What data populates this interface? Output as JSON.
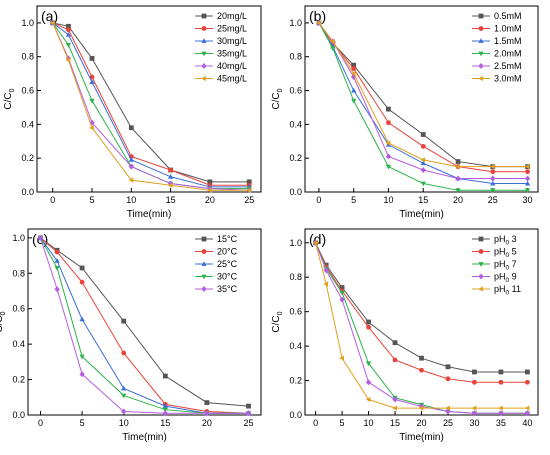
{
  "figure": {
    "marker_cycle": [
      "square",
      "circle",
      "triangle-up",
      "triangle-down",
      "diamond",
      "triangle-left"
    ]
  },
  "chart_data": [
    {
      "type": "line",
      "panel_label": "(a)",
      "xlabel": "Time(min)",
      "ylabel": "C/C",
      "ylabel_sub": "0",
      "xlim": [
        -2,
        26.5
      ],
      "ylim": [
        0,
        1.1
      ],
      "xticks": [
        0,
        5,
        10,
        15,
        20,
        25
      ],
      "yticks": [
        0.0,
        0.2,
        0.4,
        0.6,
        0.8,
        1.0
      ],
      "ytick_labels": [
        "0.0",
        "0.2",
        "0.4",
        "0.6",
        "0.8",
        "1.0"
      ],
      "legend_position": "top-right",
      "x": [
        0,
        2,
        5,
        10,
        15,
        20,
        25
      ],
      "series": [
        {
          "name": "20mg/L",
          "color": "#555555",
          "marker": "square",
          "values": [
            1.0,
            0.98,
            0.79,
            0.38,
            0.13,
            0.06,
            0.06
          ]
        },
        {
          "name": "25mg/L",
          "color": "#e8423c",
          "marker": "circle",
          "values": [
            1.0,
            0.96,
            0.68,
            0.21,
            0.13,
            0.04,
            0.04
          ]
        },
        {
          "name": "30mg/L",
          "color": "#3a6fd8",
          "marker": "triangle-up",
          "values": [
            1.0,
            0.93,
            0.65,
            0.19,
            0.09,
            0.03,
            0.03
          ]
        },
        {
          "name": "35mg/L",
          "color": "#2cb34a",
          "marker": "triangle-down",
          "values": [
            1.0,
            0.87,
            0.54,
            0.15,
            0.05,
            0.02,
            0.02
          ]
        },
        {
          "name": "40mg/L",
          "color": "#b45de0",
          "marker": "diamond",
          "values": [
            1.0,
            0.79,
            0.41,
            0.15,
            0.05,
            0.02,
            0.01
          ]
        },
        {
          "name": "45mg/L",
          "color": "#e0a020",
          "marker": "triangle-left",
          "values": [
            1.0,
            0.78,
            0.38,
            0.07,
            0.04,
            0.01,
            0.01
          ]
        }
      ]
    },
    {
      "type": "line",
      "panel_label": "(b)",
      "xlabel": "Time(min)",
      "ylabel": "C/C",
      "ylabel_sub": "0",
      "xlim": [
        -2,
        31.5
      ],
      "ylim": [
        0,
        1.1
      ],
      "xticks": [
        0,
        5,
        10,
        15,
        20,
        25,
        30
      ],
      "yticks": [
        0.0,
        0.2,
        0.4,
        0.6,
        0.8,
        1.0
      ],
      "ytick_labels": [
        "0.0",
        "0.2",
        "0.4",
        "0.6",
        "0.8",
        "1.0"
      ],
      "legend_position": "top-right",
      "x": [
        0,
        2,
        5,
        10,
        15,
        20,
        25,
        30
      ],
      "series": [
        {
          "name": "0.5mM",
          "color": "#555555",
          "marker": "square",
          "values": [
            1.0,
            0.88,
            0.75,
            0.49,
            0.34,
            0.18,
            0.15,
            0.15
          ]
        },
        {
          "name": "1.0mM",
          "color": "#e8423c",
          "marker": "circle",
          "values": [
            1.0,
            0.88,
            0.73,
            0.41,
            0.27,
            0.15,
            0.12,
            0.12
          ]
        },
        {
          "name": "1.5mM",
          "color": "#3a6fd8",
          "marker": "triangle-up",
          "values": [
            1.0,
            0.86,
            0.6,
            0.28,
            0.17,
            0.08,
            0.05,
            0.05
          ]
        },
        {
          "name": "2.0mM",
          "color": "#2cb34a",
          "marker": "triangle-down",
          "values": [
            1.0,
            0.85,
            0.54,
            0.15,
            0.05,
            0.01,
            0.01,
            0.01
          ]
        },
        {
          "name": "2.5mM",
          "color": "#b45de0",
          "marker": "diamond",
          "values": [
            1.0,
            0.89,
            0.68,
            0.21,
            0.13,
            0.08,
            0.08,
            0.08
          ]
        },
        {
          "name": "3.0mM",
          "color": "#e0a020",
          "marker": "triangle-left",
          "values": [
            1.0,
            0.89,
            0.7,
            0.29,
            0.19,
            0.15,
            0.15,
            0.15
          ]
        }
      ]
    },
    {
      "type": "line",
      "panel_label": "(c)",
      "xlabel": "Time(min)",
      "ylabel": "C/C",
      "ylabel_sub": "0",
      "xlim": [
        -1.5,
        26.5
      ],
      "ylim": [
        0,
        1.05
      ],
      "xticks": [
        0,
        5,
        10,
        15,
        20,
        25
      ],
      "yticks": [
        0.0,
        0.2,
        0.4,
        0.6,
        0.8,
        1.0
      ],
      "ytick_labels": [
        "0.0",
        "0.2",
        "0.4",
        "0.6",
        "0.8",
        "1.0"
      ],
      "legend_position": "top-right",
      "x": [
        0,
        2,
        5,
        10,
        15,
        20,
        25
      ],
      "series": [
        {
          "name": "15°C",
          "color": "#555555",
          "marker": "square",
          "values": [
            1.0,
            0.93,
            0.83,
            0.53,
            0.22,
            0.07,
            0.05
          ]
        },
        {
          "name": "20°C",
          "color": "#e8423c",
          "marker": "circle",
          "values": [
            1.0,
            0.92,
            0.75,
            0.35,
            0.06,
            0.02,
            0.01
          ]
        },
        {
          "name": "25°C",
          "color": "#3a6fd8",
          "marker": "triangle-up",
          "values": [
            1.0,
            0.87,
            0.54,
            0.15,
            0.05,
            0.01,
            0.01
          ]
        },
        {
          "name": "30°C",
          "color": "#2cb34a",
          "marker": "triangle-down",
          "values": [
            1.0,
            0.83,
            0.33,
            0.11,
            0.03,
            0.01,
            0.01
          ]
        },
        {
          "name": "35°C",
          "color": "#b45de0",
          "marker": "diamond",
          "values": [
            1.0,
            0.71,
            0.23,
            0.02,
            0.01,
            0.01,
            0.01
          ]
        }
      ]
    },
    {
      "type": "line",
      "panel_label": "(d)",
      "xlabel": "Time(min)",
      "ylabel": "C/C",
      "ylabel_sub": "0",
      "xlim": [
        -2,
        42
      ],
      "ylim": [
        0,
        1.08
      ],
      "xticks": [
        0,
        5,
        10,
        15,
        20,
        25,
        30,
        35,
        40
      ],
      "yticks": [
        0.0,
        0.2,
        0.4,
        0.6,
        0.8,
        1.0
      ],
      "ytick_labels": [
        "0.0",
        "0.2",
        "0.4",
        "0.6",
        "0.8",
        "1.0"
      ],
      "legend_position": "top-right",
      "x": [
        0,
        2,
        5,
        10,
        15,
        20,
        25,
        30,
        35,
        40
      ],
      "series": [
        {
          "name": "pH",
          "name_sub": "0",
          "name_suffix": " 3",
          "color": "#555555",
          "marker": "square",
          "values": [
            1.0,
            0.87,
            0.74,
            0.54,
            0.42,
            0.33,
            0.28,
            0.25,
            0.25,
            0.25
          ]
        },
        {
          "name": "pH",
          "name_sub": "0",
          "name_suffix": " 5",
          "color": "#e8423c",
          "marker": "circle",
          "values": [
            1.0,
            0.86,
            0.72,
            0.51,
            0.32,
            0.26,
            0.21,
            0.19,
            0.19,
            0.19
          ]
        },
        {
          "name": "pH",
          "name_sub": "0",
          "name_suffix": " 7",
          "color": "#2cb34a",
          "marker": "triangle-down",
          "values": [
            1.0,
            0.85,
            0.71,
            0.3,
            0.1,
            0.06,
            0.02,
            0.01,
            0.01,
            0.01
          ]
        },
        {
          "name": "pH",
          "name_sub": "0",
          "name_suffix": " 9",
          "color": "#b45de0",
          "marker": "diamond",
          "values": [
            1.0,
            0.84,
            0.67,
            0.19,
            0.09,
            0.05,
            0.02,
            0.01,
            0.01,
            0.01
          ]
        },
        {
          "name": "pH",
          "name_sub": "0",
          "name_suffix": " 11",
          "color": "#e0a020",
          "marker": "triangle-left",
          "values": [
            1.0,
            0.76,
            0.33,
            0.09,
            0.04,
            0.04,
            0.04,
            0.04,
            0.04,
            0.04
          ]
        }
      ]
    }
  ]
}
